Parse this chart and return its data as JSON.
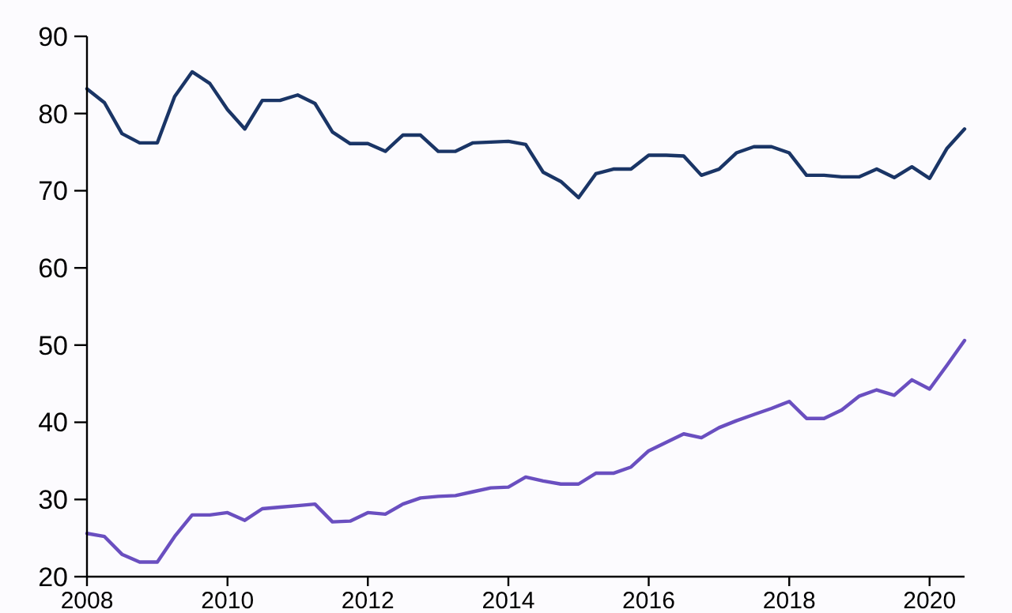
{
  "chart_data": {
    "type": "line",
    "x": [
      "2008-01",
      "2008-04",
      "2008-07",
      "2008-10",
      "2009-01",
      "2009-04",
      "2009-07",
      "2009-10",
      "2010-01",
      "2010-04",
      "2010-07",
      "2010-10",
      "2011-01",
      "2011-04",
      "2011-07",
      "2011-10",
      "2012-01",
      "2012-04",
      "2012-07",
      "2012-10",
      "2013-01",
      "2013-04",
      "2013-07",
      "2013-10",
      "2014-01",
      "2014-04",
      "2014-07",
      "2014-10",
      "2015-01",
      "2015-04",
      "2015-07",
      "2015-10",
      "2016-01",
      "2016-04",
      "2016-07",
      "2016-10",
      "2017-01",
      "2017-04",
      "2017-07",
      "2017-10",
      "2018-01",
      "2018-04",
      "2018-07",
      "2018-10",
      "2019-01",
      "2019-04",
      "2019-07",
      "2019-10",
      "2020-01",
      "2020-04",
      "2020-07"
    ],
    "series": [
      {
        "color": "#1a3566",
        "values": [
          83.2,
          81.4,
          77.4,
          76.2,
          76.2,
          82.2,
          85.4,
          83.9,
          80.5,
          78.0,
          81.7,
          81.7,
          82.4,
          81.3,
          77.6,
          76.1,
          76.1,
          75.1,
          77.2,
          77.2,
          75.1,
          75.1,
          76.2,
          76.3,
          76.4,
          76.0,
          72.4,
          71.2,
          69.1,
          72.2,
          72.8,
          72.8,
          74.6,
          74.6,
          74.5,
          72.0,
          72.8,
          74.9,
          75.7,
          75.7,
          74.9,
          72.0,
          72.0,
          71.8,
          71.8,
          72.8,
          71.7,
          73.1,
          71.6,
          75.5,
          78.0
        ]
      },
      {
        "color": "#6a4fc0",
        "values": [
          25.6,
          25.2,
          22.9,
          21.9,
          21.9,
          25.2,
          28.0,
          28.0,
          28.3,
          27.3,
          28.8,
          29.0,
          29.2,
          29.4,
          27.1,
          27.2,
          28.3,
          28.1,
          29.4,
          30.2,
          30.4,
          30.5,
          31.0,
          31.5,
          31.6,
          32.9,
          32.4,
          32.0,
          32.0,
          33.4,
          33.4,
          34.2,
          36.3,
          37.4,
          38.5,
          38.0,
          39.3,
          40.2,
          41.0,
          41.8,
          42.7,
          40.5,
          40.5,
          41.6,
          43.4,
          44.2,
          43.5,
          45.5,
          44.3,
          47.4,
          50.6
        ]
      }
    ],
    "xlim": [
      "2008-01",
      "2020-07"
    ],
    "xticks": [
      {
        "value": "2008",
        "label": "2008"
      },
      {
        "value": "2010",
        "label": "2010"
      },
      {
        "value": "2012",
        "label": "2012"
      },
      {
        "value": "2014",
        "label": "2014"
      },
      {
        "value": "2016",
        "label": "2016"
      },
      {
        "value": "2018",
        "label": "2018"
      },
      {
        "value": "2020",
        "label": "2020"
      }
    ],
    "ylim": [
      20,
      90
    ],
    "yticks": [
      20,
      30,
      40,
      50,
      60,
      70,
      80,
      90
    ]
  }
}
